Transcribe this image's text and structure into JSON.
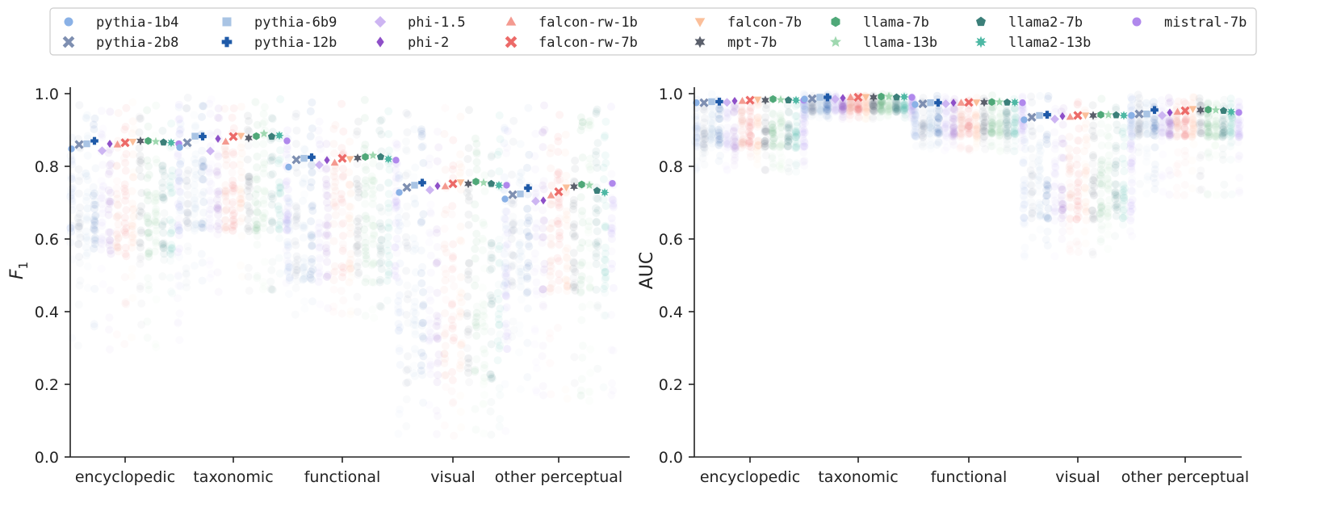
{
  "chart_data": {
    "type": "scatter",
    "categories": [
      "encyclopedic",
      "taxonomic",
      "functional",
      "visual",
      "other perceptual"
    ],
    "models": [
      {
        "name": "pythia-1b4",
        "color": "#8ab1e6",
        "marker": "circle"
      },
      {
        "name": "pythia-2b8",
        "color": "#7e8fb1",
        "marker": "x"
      },
      {
        "name": "pythia-6b9",
        "color": "#a9c4e4",
        "marker": "square"
      },
      {
        "name": "pythia-12b",
        "color": "#1f5aa8",
        "marker": "plus"
      },
      {
        "name": "phi-1.5",
        "color": "#cdb5f2",
        "marker": "diamond"
      },
      {
        "name": "phi-2",
        "color": "#8e4fc8",
        "marker": "thin_diamond"
      },
      {
        "name": "falcon-rw-1b",
        "color": "#f49a90",
        "marker": "triangle_up"
      },
      {
        "name": "falcon-rw-7b",
        "color": "#ec6a68",
        "marker": "x"
      },
      {
        "name": "falcon-7b",
        "color": "#fbbf9a",
        "marker": "triangle_down"
      },
      {
        "name": "mpt-7b",
        "color": "#5a5f6b",
        "marker": "star6"
      },
      {
        "name": "llama-7b",
        "color": "#4fa878",
        "marker": "hexagon"
      },
      {
        "name": "llama-13b",
        "color": "#9fd8b0",
        "marker": "star"
      },
      {
        "name": "llama2-7b",
        "color": "#3b7f79",
        "marker": "pentagon"
      },
      {
        "name": "llama2-13b",
        "color": "#4db8a4",
        "marker": "star8"
      },
      {
        "name": "mistral-7b",
        "color": "#b088ec",
        "marker": "circle"
      }
    ],
    "charts": [
      {
        "ylabel_main": "F",
        "ylabel_sub": "1",
        "ylim": [
          0.0,
          1.0
        ],
        "yticks": [
          "0.0",
          "0.2",
          "0.4",
          "0.6",
          "0.8",
          "1.0"
        ],
        "series_means": [
          [
            0.848,
            0.86,
            0.862,
            0.87,
            0.843,
            0.862,
            0.86,
            0.865,
            0.868,
            0.87,
            0.87,
            0.868,
            0.866,
            0.865,
            0.862
          ],
          [
            0.852,
            0.865,
            0.883,
            0.882,
            0.842,
            0.876,
            0.868,
            0.882,
            0.884,
            0.878,
            0.883,
            0.89,
            0.882,
            0.885,
            0.87
          ],
          [
            0.798,
            0.818,
            0.822,
            0.825,
            0.804,
            0.817,
            0.81,
            0.822,
            0.82,
            0.823,
            0.826,
            0.83,
            0.826,
            0.82,
            0.817
          ],
          [
            0.728,
            0.742,
            0.748,
            0.755,
            0.735,
            0.746,
            0.745,
            0.752,
            0.756,
            0.752,
            0.758,
            0.755,
            0.752,
            0.748,
            0.748
          ],
          [
            0.71,
            0.722,
            0.724,
            0.74,
            0.704,
            0.706,
            0.72,
            0.73,
            0.742,
            0.744,
            0.75,
            0.748,
            0.733,
            0.728,
            0.753
          ]
        ],
        "spread": [
          {
            "low": 0.55,
            "sparse_low": 0.28
          },
          {
            "low": 0.62,
            "sparse_low": 0.45
          },
          {
            "low": 0.48,
            "sparse_low": 0.38
          },
          {
            "low": 0.2,
            "sparse_low": 0.05
          },
          {
            "low": 0.45,
            "sparse_low": 0.15
          }
        ]
      },
      {
        "ylabel_main": "AUC",
        "ylabel_sub": "",
        "ylim": [
          0.0,
          1.0
        ],
        "yticks": [
          "0.0",
          "0.2",
          "0.4",
          "0.6",
          "0.8",
          "1.0"
        ],
        "series_means": [
          [
            0.975,
            0.975,
            0.978,
            0.978,
            0.976,
            0.98,
            0.98,
            0.982,
            0.984,
            0.982,
            0.985,
            0.983,
            0.982,
            0.982,
            0.982
          ],
          [
            0.985,
            0.986,
            0.99,
            0.99,
            0.985,
            0.988,
            0.99,
            0.99,
            0.991,
            0.99,
            0.992,
            0.992,
            0.99,
            0.991,
            0.99
          ],
          [
            0.97,
            0.972,
            0.975,
            0.975,
            0.972,
            0.975,
            0.975,
            0.976,
            0.976,
            0.976,
            0.977,
            0.977,
            0.976,
            0.976,
            0.975
          ],
          [
            0.928,
            0.935,
            0.94,
            0.942,
            0.93,
            0.938,
            0.936,
            0.94,
            0.94,
            0.94,
            0.942,
            0.942,
            0.941,
            0.94,
            0.94
          ],
          [
            0.94,
            0.944,
            0.944,
            0.955,
            0.94,
            0.948,
            0.95,
            0.953,
            0.958,
            0.955,
            0.956,
            0.955,
            0.953,
            0.95,
            0.948
          ]
        ],
        "spread": [
          {
            "low": 0.85,
            "sparse_low": 0.78
          },
          {
            "low": 0.95,
            "sparse_low": 0.93
          },
          {
            "low": 0.88,
            "sparse_low": 0.84
          },
          {
            "low": 0.65,
            "sparse_low": 0.55
          },
          {
            "low": 0.88,
            "sparse_low": 0.72
          }
        ]
      }
    ]
  }
}
